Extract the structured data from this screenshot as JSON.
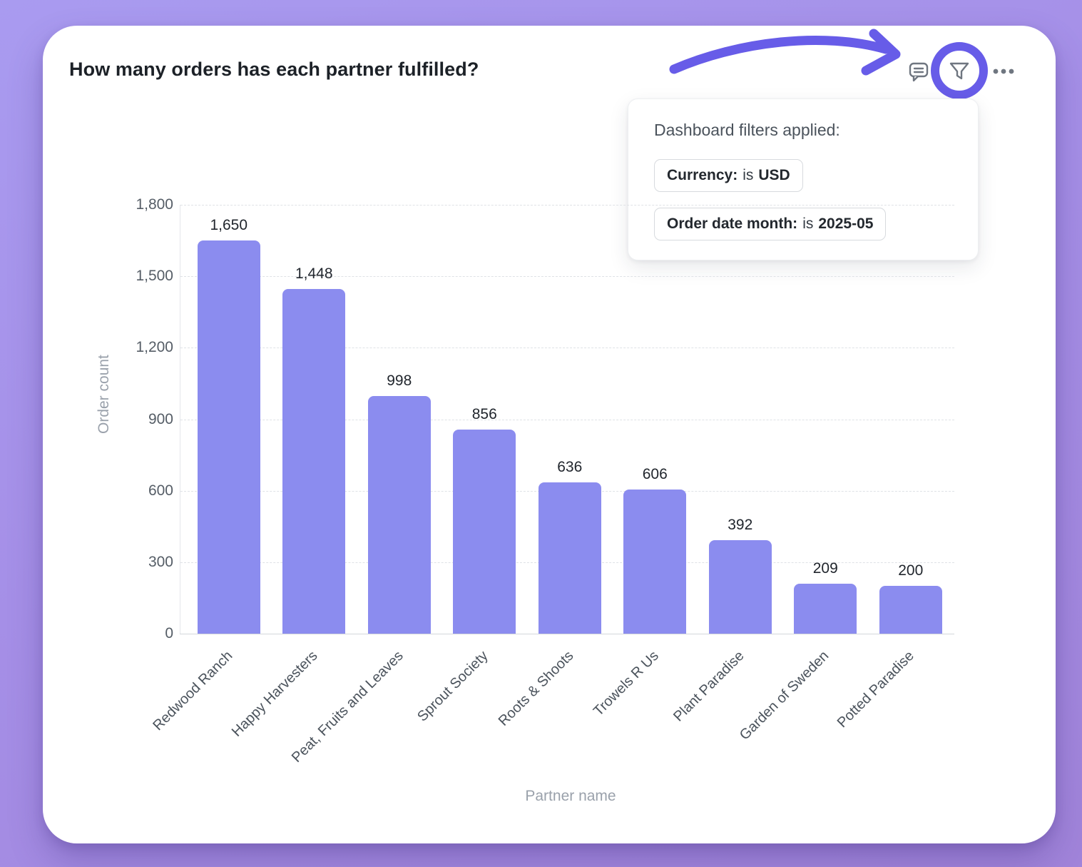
{
  "card": {
    "title": "How many orders has each partner fulfilled?"
  },
  "toolbar": {
    "icons": [
      "comment-icon",
      "filter-icon",
      "more-options-icon"
    ]
  },
  "annotation": {
    "type": "hand-drawn arrow circling the filter icon",
    "color": "#675ce8"
  },
  "tooltip": {
    "title": "Dashboard filters applied:",
    "filters": [
      {
        "field": "Currency:",
        "op": "is",
        "value": "USD"
      },
      {
        "field": "Order date month:",
        "op": "is",
        "value": "2025-05"
      }
    ]
  },
  "chart_data": {
    "type": "bar",
    "title": "",
    "categories": [
      "Redwood Ranch",
      "Happy Harvesters",
      "Peat, Fruits and Leaves",
      "Sprout Society",
      "Roots & Shoots",
      "Trowels R Us",
      "Plant Paradise",
      "Garden of Sweden",
      "Potted Paradise"
    ],
    "values": [
      1650,
      1448,
      998,
      856,
      636,
      606,
      392,
      209,
      200
    ],
    "value_labels": [
      "1,650",
      "1,448",
      "998",
      "856",
      "636",
      "606",
      "392",
      "209",
      "200"
    ],
    "xlabel": "Partner name",
    "ylabel": "Order count",
    "ylim": [
      0,
      1800
    ],
    "yticks": [
      0,
      300,
      600,
      900,
      1200,
      1500,
      1800
    ],
    "ytick_labels": [
      "0",
      "300",
      "600",
      "900",
      "1,200",
      "1,500",
      "1,800"
    ],
    "grid": "horizontal-dashed",
    "legend": "none",
    "bar_color": "#8b8cef"
  },
  "colors": {
    "background": "#a58fe7",
    "card": "#ffffff",
    "bar": "#8b8cef",
    "annotation_purple": "#675ce8",
    "icon_gray": "#6f7680",
    "title_text": "#1c2127",
    "tick_text": "#555d66",
    "axis_name_text": "#9aa1ab"
  }
}
